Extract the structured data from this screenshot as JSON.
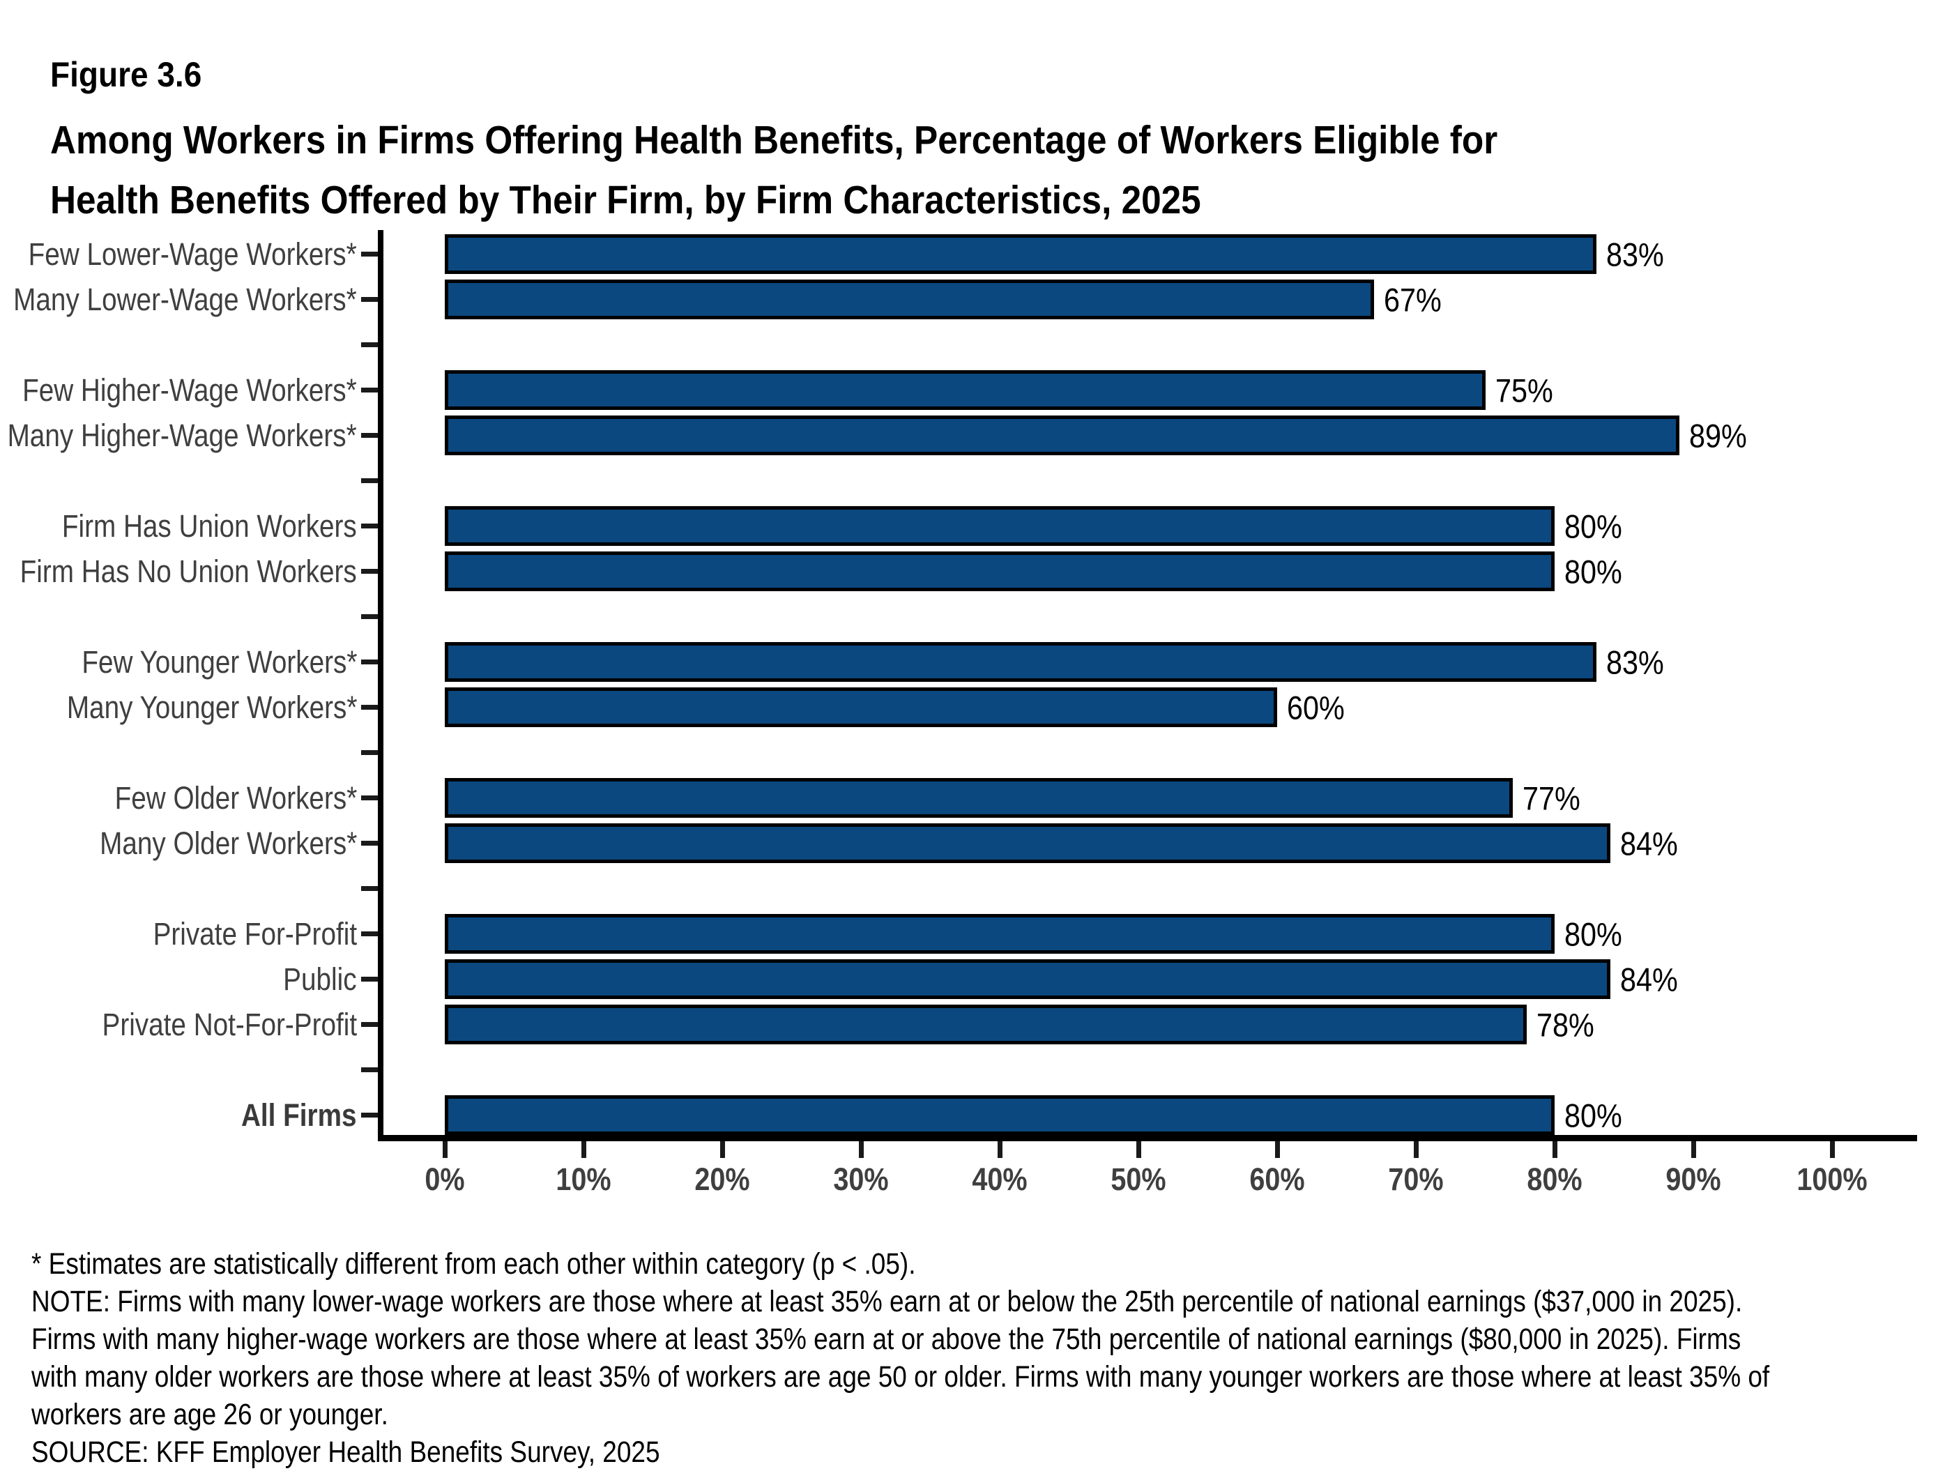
{
  "figure_label": "Figure 3.6",
  "title_lines": [
    "Among Workers in Firms Offering Health Benefits, Percentage of Workers Eligible for",
    "Health Benefits Offered by Their Firm, by Firm Characteristics, 2025"
  ],
  "chart_data": {
    "type": "bar",
    "orientation": "horizontal",
    "unit": "%",
    "xlim": [
      0,
      100
    ],
    "x_tick_labels": [
      "0%",
      "10%",
      "20%",
      "30%",
      "40%",
      "50%",
      "60%",
      "70%",
      "80%",
      "90%",
      "100%"
    ],
    "grid": false,
    "legend": "none",
    "bar_color": "#0B4880",
    "bar_border_color": "#000000",
    "category_label_color": "#3f3f3f",
    "value_label_color": "#000000",
    "groups": [
      {
        "categories": [
          "Few Lower-Wage Workers*",
          "Many Lower-Wage Workers*"
        ],
        "values": [
          83,
          67
        ]
      },
      {
        "categories": [
          "Few Higher-Wage Workers*",
          "Many Higher-Wage Workers*"
        ],
        "values": [
          75,
          89
        ]
      },
      {
        "categories": [
          "Firm Has Union Workers",
          "Firm Has No Union Workers"
        ],
        "values": [
          80,
          80
        ]
      },
      {
        "categories": [
          "Few Younger Workers*",
          "Many Younger Workers*"
        ],
        "values": [
          83,
          60
        ]
      },
      {
        "categories": [
          "Few Older Workers*",
          "Many Older Workers*"
        ],
        "values": [
          77,
          84
        ]
      },
      {
        "categories": [
          "Private For-Profit",
          "Public",
          "Private Not-For-Profit"
        ],
        "values": [
          80,
          84,
          78
        ]
      },
      {
        "categories": [
          "All Firms"
        ],
        "values": [
          80
        ],
        "bold": true
      }
    ],
    "value_labels": [
      "83%",
      "67%",
      "75%",
      "89%",
      "80%",
      "80%",
      "83%",
      "60%",
      "77%",
      "84%",
      "80%",
      "84%",
      "78%",
      "80%"
    ]
  },
  "footnotes": [
    "* Estimates are statistically different from each other within category (p < .05).",
    "NOTE: Firms with many lower-wage workers are those where at least 35% earn at or below the 25th percentile of national earnings ($37,000 in 2025).",
    "Firms with many higher-wage workers are those where at least 35% earn at or above the 75th percentile of national earnings ($80,000 in 2025). Firms",
    "with many older workers are those where at least 35% of workers are age 50 or older. Firms with many younger workers are those where at least 35% of",
    "workers are age 26 or younger.",
    "SOURCE: KFF Employer Health Benefits Survey, 2025"
  ]
}
